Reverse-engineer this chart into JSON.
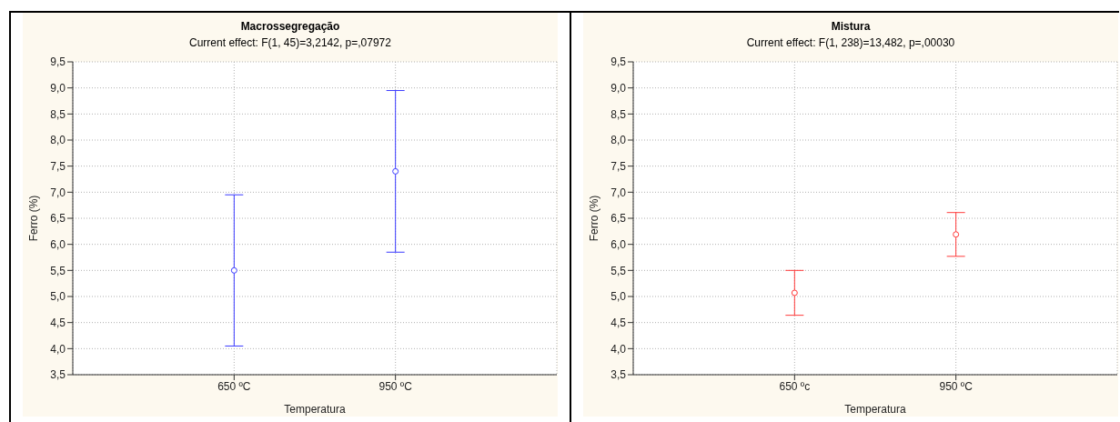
{
  "chart_data": [
    {
      "type": "scatter",
      "title": "Macrossegregação",
      "subtitle": "Current effect: F(1, 45)=3,2142, p=,07972",
      "xlabel": "Temperatura",
      "ylabel": "Ferro (%)",
      "categories": [
        "650 ºC",
        "950 ºC"
      ],
      "series": [
        {
          "color": "#3b3bff",
          "values": [
            5.5,
            7.4
          ],
          "errors": [
            1.45,
            1.55
          ]
        }
      ],
      "ylim": [
        3.5,
        9.5
      ],
      "yticks": [
        {
          "value": 3.5,
          "label": "3,5"
        },
        {
          "value": 4,
          "label": "4,0"
        },
        {
          "value": 4.5,
          "label": "4,5"
        },
        {
          "value": 5,
          "label": "5,0"
        },
        {
          "value": 5.5,
          "label": "5,5"
        },
        {
          "value": 6,
          "label": "6,0"
        },
        {
          "value": 6.5,
          "label": "6,5"
        },
        {
          "value": 7,
          "label": "7,0"
        },
        {
          "value": 7.5,
          "label": "7,5"
        },
        {
          "value": 8,
          "label": "8,0"
        },
        {
          "value": 8.5,
          "label": "8,5"
        },
        {
          "value": 9,
          "label": "9,0"
        },
        {
          "value": 9.5,
          "label": "9,5"
        }
      ],
      "grid": true,
      "marker": "circle"
    },
    {
      "type": "scatter",
      "title": "Mistura",
      "subtitle": "Current effect: F(1, 238)=13,482, p=,00030",
      "xlabel": "Temperatura",
      "ylabel": "Ferro (%)",
      "categories": [
        "650 ºc",
        "950 ºC"
      ],
      "series": [
        {
          "color": "#ff3b3b",
          "values": [
            5.07,
            6.19
          ],
          "errors": [
            0.43,
            0.42
          ]
        }
      ],
      "ylim": [
        3.5,
        9.5
      ],
      "yticks": [
        {
          "value": 3.5,
          "label": "3,5"
        },
        {
          "value": 4,
          "label": "4,0"
        },
        {
          "value": 4.5,
          "label": "4,5"
        },
        {
          "value": 5,
          "label": "5,0"
        },
        {
          "value": 5.5,
          "label": "5,5"
        },
        {
          "value": 6,
          "label": "6,0"
        },
        {
          "value": 6.5,
          "label": "6,5"
        },
        {
          "value": 7,
          "label": "7,0"
        },
        {
          "value": 7.5,
          "label": "7,5"
        },
        {
          "value": 8,
          "label": "8,0"
        },
        {
          "value": 8.5,
          "label": "8,5"
        },
        {
          "value": 9,
          "label": "9,0"
        },
        {
          "value": 9.5,
          "label": "9,5"
        }
      ],
      "grid": true,
      "marker": "circle"
    }
  ]
}
